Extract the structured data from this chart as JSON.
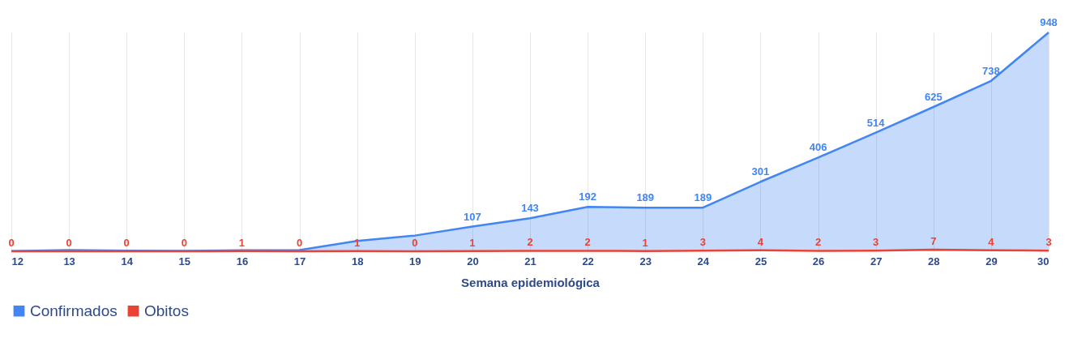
{
  "chart_data": {
    "type": "area",
    "xlabel": "Semana epidemiológica",
    "categories": [
      "12",
      "13",
      "14",
      "15",
      "16",
      "17",
      "18",
      "19",
      "20",
      "21",
      "22",
      "23",
      "24",
      "25",
      "26",
      "27",
      "28",
      "29",
      "30"
    ],
    "series": [
      {
        "name": "Confirmados",
        "color": "#4285f4",
        "values": [
          1,
          5,
          3,
          2,
          4,
          5,
          45,
          68,
          107,
          143,
          192,
          189,
          189,
          301,
          406,
          514,
          625,
          738,
          948
        ],
        "value_labels": [
          null,
          null,
          null,
          null,
          null,
          null,
          null,
          null,
          "107",
          "143",
          "192",
          "189",
          "189",
          "301",
          "406",
          "514",
          "625",
          "738",
          "948"
        ]
      },
      {
        "name": "Obitos",
        "color": "#ea4335",
        "type": "line",
        "values": [
          0,
          0,
          0,
          0,
          1,
          0,
          1,
          0,
          1,
          2,
          2,
          1,
          3,
          4,
          2,
          3,
          7,
          4,
          3
        ],
        "value_labels": [
          "0",
          "0",
          "0",
          "0",
          "1",
          "0",
          "1",
          "0",
          "1",
          "2",
          "2",
          "1",
          "3",
          "4",
          "2",
          "3",
          "7",
          "4",
          "3"
        ]
      }
    ],
    "grid": "x",
    "legend": "bottom",
    "tick_labels": "x"
  }
}
